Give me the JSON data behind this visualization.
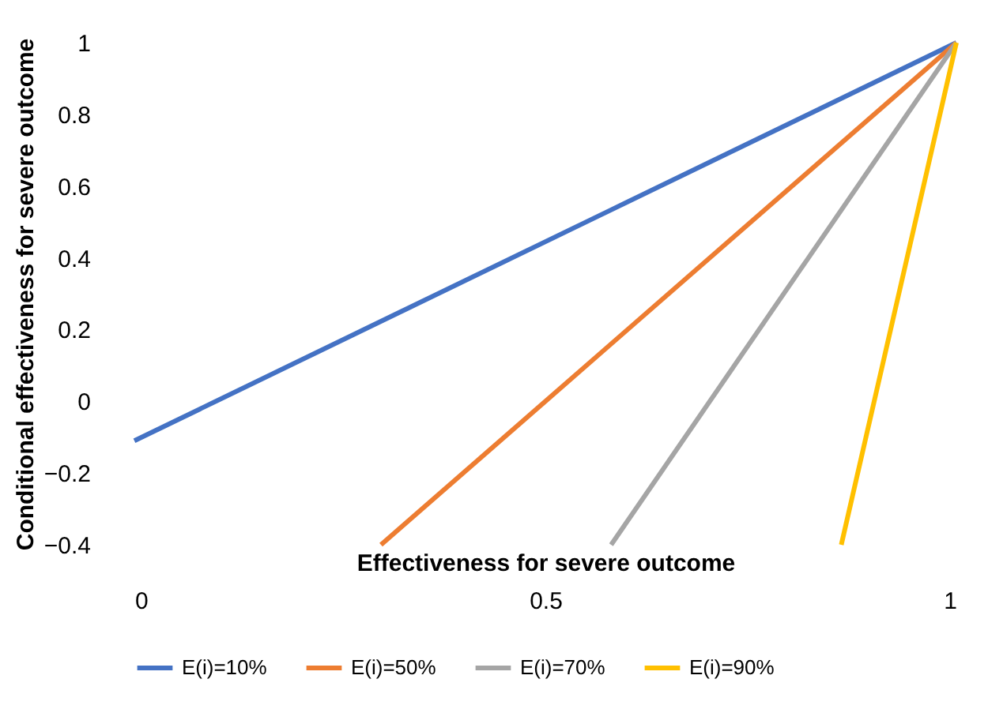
{
  "chart_data": {
    "type": "line",
    "xlabel": "Effectiveness for severe outcome",
    "ylabel": "Conditional effectiveness for severe outcome",
    "xlim": [
      0,
      1
    ],
    "xticks": [
      0,
      0.5,
      1
    ],
    "ylim": [
      -0.4,
      1
    ],
    "yticks": [
      -0.4,
      -0.2,
      0,
      0.2,
      0.4,
      0.6,
      0.8,
      1
    ],
    "grid": false,
    "legend": "bottom",
    "marker": "none",
    "line_style": "solid",
    "series": [
      {
        "name": "E(i)=10%",
        "color": "#4472c4",
        "x": [
          0,
          1
        ],
        "values": [
          -0.11,
          1
        ]
      },
      {
        "name": "E(i)=50%",
        "color": "#ed7d31",
        "x": [
          0.3,
          1
        ],
        "values": [
          -0.4,
          1
        ]
      },
      {
        "name": "E(i)=70%",
        "color": "#a5a5a5",
        "x": [
          0.58,
          1
        ],
        "values": [
          -0.4,
          1
        ]
      },
      {
        "name": "E(i)=90%",
        "color": "#ffc000",
        "x": [
          0.86,
          1
        ],
        "values": [
          -0.4,
          1
        ]
      }
    ]
  }
}
